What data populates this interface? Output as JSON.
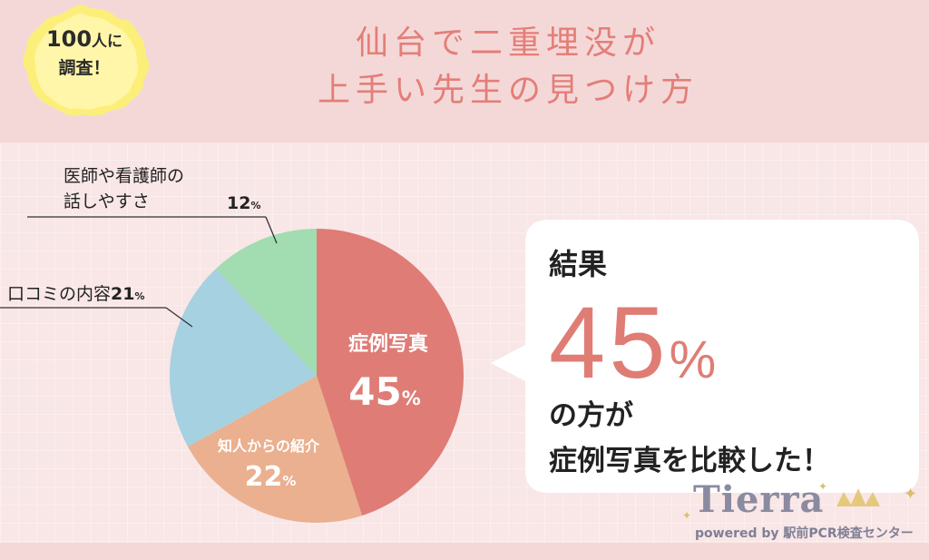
{
  "badge": {
    "line1_num": "100",
    "line1_suffix": "人に",
    "line2": "調査！"
  },
  "title": {
    "line1": "仙台で二重埋没が",
    "line2": "上手い先生の見つけ方"
  },
  "chart_data": {
    "type": "pie",
    "categories": [
      "症例写真",
      "知人からの紹介",
      "口コミの内容",
      "医師や看護師の話しやすさ"
    ],
    "values": [
      45,
      22,
      21,
      12
    ],
    "colors": [
      "#df7c76",
      "#eab08f",
      "#a6d1e0",
      "#a2dcb1"
    ],
    "value_labels": [
      "45",
      "22",
      "21",
      "12"
    ],
    "unit": "%"
  },
  "callouts": {
    "c1_line1": "医師や看護師の",
    "c1_line2": "話しやすさ",
    "c1_value": "12",
    "c2_label": "口コミの内容",
    "c2_value": "21",
    "unit": "%"
  },
  "result": {
    "heading": "結果",
    "value": "45",
    "unit": "%",
    "line1": "の方が",
    "line2": "症例写真を比較した！"
  },
  "logo": {
    "name": "Tierra",
    "sub": "powered by 駅前PCR検査センター"
  }
}
